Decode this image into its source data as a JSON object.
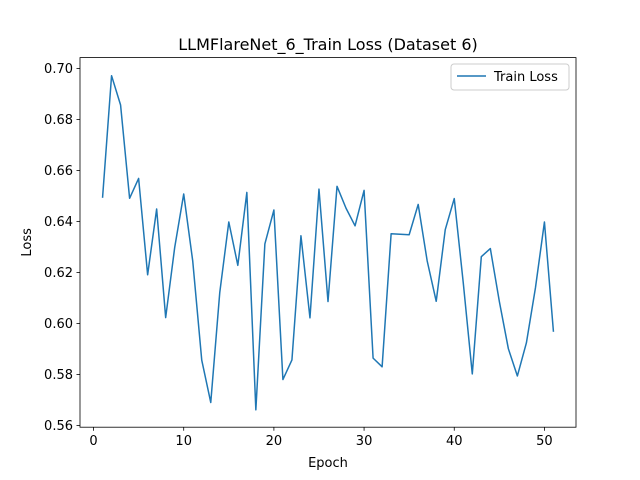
{
  "chart_data": {
    "type": "line",
    "title": "LLMFlareNet_6_Train Loss  (Dataset 6)",
    "xlabel": "Epoch",
    "ylabel": "Loss",
    "xlim": [
      -1.5,
      53.5
    ],
    "ylim": [
      0.5593,
      0.7043
    ],
    "xticks": [
      0,
      10,
      20,
      30,
      40,
      50
    ],
    "yticks": [
      0.56,
      0.58,
      0.6,
      0.62,
      0.64,
      0.66,
      0.68,
      0.7
    ],
    "ytick_labels": [
      "0.56",
      "0.58",
      "0.60",
      "0.62",
      "0.64",
      "0.66",
      "0.68",
      "0.70"
    ],
    "grid": false,
    "legend": "upper right",
    "series": [
      {
        "name": "Train Loss",
        "color": "#1f77b4",
        "x": [
          1,
          2,
          3,
          4,
          5,
          6,
          7,
          8,
          9,
          10,
          11,
          12,
          13,
          14,
          15,
          16,
          17,
          18,
          19,
          20,
          21,
          22,
          23,
          24,
          25,
          26,
          27,
          28,
          29,
          30,
          31,
          32,
          33,
          34,
          35,
          36,
          37,
          38,
          39,
          40,
          41,
          42,
          43,
          44,
          45,
          46,
          47,
          48,
          49,
          50,
          51
        ],
        "y": [
          0.6493,
          0.6972,
          0.6857,
          0.6491,
          0.6569,
          0.6191,
          0.6449,
          0.6023,
          0.6298,
          0.6508,
          0.6245,
          0.5856,
          0.569,
          0.6122,
          0.6398,
          0.6228,
          0.6514,
          0.5661,
          0.6312,
          0.6445,
          0.578,
          0.5857,
          0.6344,
          0.6022,
          0.6527,
          0.6086,
          0.6538,
          0.6452,
          0.6383,
          0.6522,
          0.5864,
          0.583,
          0.6352,
          0.635,
          0.6348,
          0.6467,
          0.6245,
          0.6087,
          0.6368,
          0.649,
          0.6159,
          0.5802,
          0.6262,
          0.6294,
          0.6086,
          0.5901,
          0.5794,
          0.5924,
          0.6139,
          0.6398,
          0.5967
        ]
      }
    ]
  }
}
